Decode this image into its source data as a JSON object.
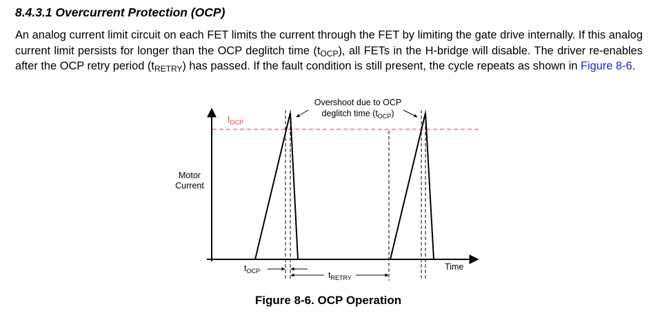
{
  "section": {
    "heading": "8.4.3.1 Overcurrent Protection (OCP)"
  },
  "paragraph": {
    "part1": "An analog current limit circuit on each FET limits the current through the FET by limiting the gate drive internally. If this analog current limit persists for longer than the OCP deglitch time (t",
    "sub1": "OCP",
    "part2": "), all FETs in the H-bridge will disable. The driver re-enables after the OCP retry period (t",
    "sub2": "RETRY",
    "part3": ") has passed. If the fault condition is still present, the cycle repeats as shown in ",
    "link": "Figure 8-6",
    "part4": "."
  },
  "figure": {
    "ylabel_line1": "Motor",
    "ylabel_line2": "Current",
    "xlabel": "Time",
    "iocp_main": "I",
    "iocp_sub": "OCP",
    "note_line1": "Overshoot due to OCP",
    "note_line2_prefix": "deglitch time (t",
    "note_line2_sub": "OCP",
    "note_line2_suffix": ")",
    "tocp_main": "t",
    "tocp_sub": "OCP",
    "tretry_main": "t",
    "tretry_sub": "RETRY",
    "caption": "Figure 8-6. OCP Operation"
  },
  "colors": {
    "limit_line": "#e0323c",
    "iocp_label": "#e0323c",
    "link": "#1f1fcf"
  }
}
